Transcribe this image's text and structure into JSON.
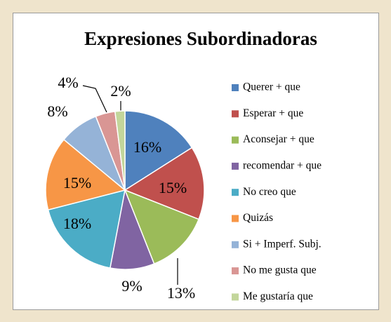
{
  "chart_data": {
    "type": "pie",
    "title": "Expresiones Subordinadoras",
    "categories": [
      "Querer + que",
      "Esperar + que",
      "Aconsejar + que",
      "recomendar + que",
      "No creo que",
      "Quizás",
      "Si + Imperf. Subj.",
      "No me gusta que",
      "Me gustaría que"
    ],
    "values": [
      16,
      15,
      13,
      9,
      18,
      15,
      8,
      4,
      2
    ],
    "value_labels": [
      "16%",
      "15%",
      "13%",
      "9%",
      "18%",
      "15%",
      "8%",
      "4%",
      "2%"
    ],
    "colors": [
      "#4f81bd",
      "#c0504d",
      "#9bbb59",
      "#8064a2",
      "#4bacc6",
      "#f79646",
      "#95b3d7",
      "#d99694",
      "#c3d69b"
    ],
    "legend": "right"
  }
}
